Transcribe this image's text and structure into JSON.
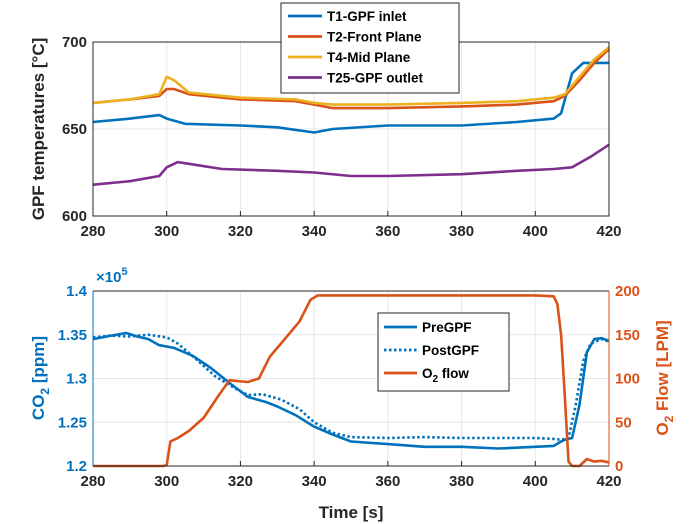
{
  "chart_data": [
    {
      "type": "line",
      "xlabel": "",
      "ylabel": "GPF temperatures [°C]",
      "xlim": [
        280,
        420
      ],
      "ylim": [
        600,
        700
      ],
      "xticks": [
        "280",
        "300",
        "320",
        "340",
        "360",
        "380",
        "400",
        "420"
      ],
      "yticks": [
        "600",
        "650",
        "700"
      ],
      "grid": true,
      "legend_position": "top-center",
      "series": [
        {
          "name": "T1-GPF inlet",
          "color": "#0072BD",
          "points": [
            [
              280,
              654
            ],
            [
              290,
              656
            ],
            [
              298,
              658
            ],
            [
              300,
              656
            ],
            [
              305,
              653
            ],
            [
              320,
              652
            ],
            [
              330,
              651
            ],
            [
              340,
              648
            ],
            [
              345,
              650
            ],
            [
              360,
              652
            ],
            [
              380,
              652
            ],
            [
              395,
              654
            ],
            [
              405,
              656
            ],
            [
              407,
              659
            ],
            [
              410,
              682
            ],
            [
              413,
              688
            ],
            [
              420,
              688
            ]
          ]
        },
        {
          "name": "T2-Front Plane",
          "color": "#D95319",
          "points": [
            [
              280,
              665
            ],
            [
              290,
              667
            ],
            [
              298,
              669
            ],
            [
              300,
              673
            ],
            [
              302,
              673
            ],
            [
              306,
              670
            ],
            [
              320,
              667
            ],
            [
              335,
              666
            ],
            [
              340,
              664
            ],
            [
              345,
              662
            ],
            [
              360,
              662
            ],
            [
              380,
              663
            ],
            [
              395,
              664
            ],
            [
              405,
              666
            ],
            [
              408,
              669
            ],
            [
              412,
              678
            ],
            [
              416,
              688
            ],
            [
              420,
              696
            ]
          ]
        },
        {
          "name": "T4-Mid Plane",
          "color": "#EDB120",
          "points": [
            [
              280,
              665
            ],
            [
              290,
              667
            ],
            [
              298,
              670
            ],
            [
              300,
              680
            ],
            [
              302,
              678
            ],
            [
              306,
              671
            ],
            [
              320,
              668
            ],
            [
              335,
              667
            ],
            [
              340,
              665
            ],
            [
              345,
              664
            ],
            [
              360,
              664
            ],
            [
              380,
              665
            ],
            [
              395,
              666
            ],
            [
              405,
              668
            ],
            [
              408,
              670
            ],
            [
              412,
              680
            ],
            [
              416,
              690
            ],
            [
              420,
              697
            ]
          ]
        },
        {
          "name": "T25-GPF outlet",
          "color": "#7E2F8E",
          "points": [
            [
              280,
              618
            ],
            [
              290,
              620
            ],
            [
              298,
              623
            ],
            [
              300,
              628
            ],
            [
              303,
              631
            ],
            [
              306,
              630
            ],
            [
              315,
              627
            ],
            [
              330,
              626
            ],
            [
              340,
              625
            ],
            [
              350,
              623
            ],
            [
              360,
              623
            ],
            [
              380,
              624
            ],
            [
              395,
              626
            ],
            [
              405,
              627
            ],
            [
              410,
              628
            ],
            [
              415,
              634
            ],
            [
              420,
              641
            ]
          ]
        }
      ]
    },
    {
      "type": "line",
      "xlabel": "Time [s]",
      "ylabel": "CO2 [ppm]",
      "ylabel_right": "O2 Flow [LPM]",
      "y_exponent_label": "×10",
      "y_exponent_power": "5",
      "xlim": [
        280,
        420
      ],
      "ylim": [
        1.2,
        1.4
      ],
      "ylim_right": [
        0,
        200
      ],
      "xticks": [
        "280",
        "300",
        "320",
        "340",
        "360",
        "380",
        "400",
        "420"
      ],
      "yticks": [
        "1.2",
        "1.25",
        "1.3",
        "1.35",
        "1.4"
      ],
      "yticks_right": [
        "0",
        "50",
        "100",
        "150",
        "200"
      ],
      "grid": true,
      "legend_position": "center-right",
      "series": [
        {
          "name": "PreGPF",
          "color": "#0072BD",
          "axis": "left",
          "dash": "solid",
          "points": [
            [
              280,
              1.345
            ],
            [
              285,
              1.349
            ],
            [
              289,
              1.352
            ],
            [
              292,
              1.348
            ],
            [
              295,
              1.345
            ],
            [
              298,
              1.338
            ],
            [
              302,
              1.335
            ],
            [
              307,
              1.326
            ],
            [
              312,
              1.312
            ],
            [
              317,
              1.295
            ],
            [
              322,
              1.279
            ],
            [
              327,
              1.273
            ],
            [
              330,
              1.268
            ],
            [
              335,
              1.258
            ],
            [
              340,
              1.245
            ],
            [
              345,
              1.236
            ],
            [
              350,
              1.228
            ],
            [
              360,
              1.225
            ],
            [
              370,
              1.222
            ],
            [
              380,
              1.222
            ],
            [
              390,
              1.22
            ],
            [
              400,
              1.222
            ],
            [
              405,
              1.223
            ],
            [
              407,
              1.228
            ],
            [
              408,
              1.23
            ],
            [
              410,
              1.232
            ],
            [
              412,
              1.27
            ],
            [
              414,
              1.33
            ],
            [
              416,
              1.345
            ],
            [
              418,
              1.346
            ],
            [
              420,
              1.343
            ]
          ]
        },
        {
          "name": "PostGPF",
          "color": "#0072BD",
          "axis": "left",
          "dash": "dotted",
          "points": [
            [
              280,
              1.347
            ],
            [
              285,
              1.349
            ],
            [
              290,
              1.348
            ],
            [
              295,
              1.35
            ],
            [
              300,
              1.347
            ],
            [
              303,
              1.34
            ],
            [
              308,
              1.322
            ],
            [
              313,
              1.303
            ],
            [
              318,
              1.29
            ],
            [
              322,
              1.281
            ],
            [
              326,
              1.282
            ],
            [
              331,
              1.276
            ],
            [
              336,
              1.265
            ],
            [
              340,
              1.25
            ],
            [
              345,
              1.238
            ],
            [
              350,
              1.233
            ],
            [
              360,
              1.232
            ],
            [
              370,
              1.233
            ],
            [
              380,
              1.232
            ],
            [
              390,
              1.232
            ],
            [
              400,
              1.232
            ],
            [
              405,
              1.231
            ],
            [
              407,
              1.23
            ],
            [
              409,
              1.232
            ],
            [
              411,
              1.27
            ],
            [
              413,
              1.32
            ],
            [
              415,
              1.34
            ],
            [
              418,
              1.345
            ],
            [
              420,
              1.342
            ]
          ]
        },
        {
          "name": "O2 flow",
          "legend_label": "O",
          "legend_sub": "2",
          "legend_suffix": " flow",
          "color": "#D95319",
          "axis": "right",
          "dash": "solid",
          "points": [
            [
              280,
              0
            ],
            [
              299,
              0
            ],
            [
              300,
              1
            ],
            [
              301,
              28
            ],
            [
              303,
              32
            ],
            [
              306,
              40
            ],
            [
              310,
              55
            ],
            [
              314,
              80
            ],
            [
              317,
              98
            ],
            [
              322,
              96
            ],
            [
              325,
              100
            ],
            [
              328,
              125
            ],
            [
              332,
              145
            ],
            [
              336,
              165
            ],
            [
              339,
              190
            ],
            [
              341,
              195
            ],
            [
              350,
              195
            ],
            [
              360,
              195
            ],
            [
              370,
              195
            ],
            [
              380,
              195
            ],
            [
              390,
              195
            ],
            [
              400,
              195
            ],
            [
              405,
              194
            ],
            [
              406,
              185
            ],
            [
              407,
              150
            ],
            [
              408,
              80
            ],
            [
              409,
              5
            ],
            [
              410,
              0
            ],
            [
              412,
              0
            ],
            [
              414,
              8
            ],
            [
              416,
              5
            ],
            [
              418,
              6
            ],
            [
              420,
              4
            ]
          ]
        }
      ]
    }
  ]
}
